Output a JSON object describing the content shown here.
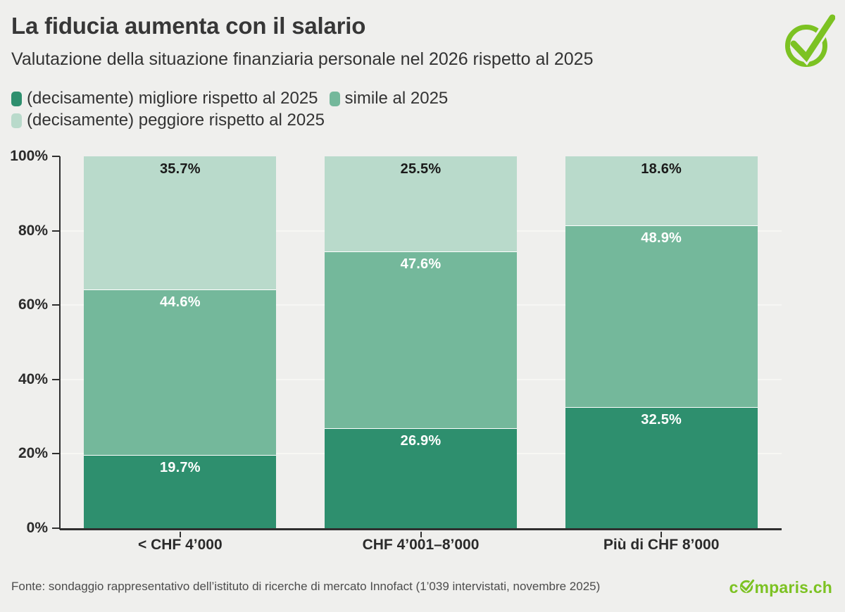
{
  "page": {
    "background": "#efefed"
  },
  "header": {
    "title": "La fiducia aumenta con il salario",
    "subtitle": "Valutazione della situazione finanziaria personale nel 2026 rispetto al 2025"
  },
  "brand": {
    "green": "#7cc222",
    "checkmark_icon": "check-circle",
    "logo_pre": "c",
    "logo_post": "mparis.ch"
  },
  "chart_data": {
    "type": "bar",
    "subtype": "stacked-100",
    "title": "La fiducia aumenta con il salario",
    "subtitle": "Valutazione della situazione finanziaria personale nel 2026 rispetto al 2025",
    "categories": [
      "< CHF 4’000",
      "CHF 4’001–8’000",
      "Più di CHF 8’000"
    ],
    "series": [
      {
        "name": "(decisamente) migliore rispetto al 2025",
        "color": "#2e8f6e",
        "label_color": "#ffffff",
        "values": [
          19.7,
          26.9,
          32.5
        ]
      },
      {
        "name": "simile al 2025",
        "color": "#74b89b",
        "label_color": "#ffffff",
        "values": [
          44.6,
          47.6,
          48.9
        ]
      },
      {
        "name": "(decisamente) peggiore rispetto al 2025",
        "color": "#b9dacb",
        "label_color": "#1a1a1a",
        "values": [
          35.7,
          25.5,
          18.6
        ]
      }
    ],
    "xlabel": "",
    "ylabel": "",
    "ylim": [
      0,
      100
    ],
    "y_ticks": [
      0,
      20,
      40,
      60,
      80,
      100
    ],
    "y_tick_suffix": "%",
    "label_suffix": "%",
    "grid": true,
    "legend_position": "top",
    "axis_color": "#2f2f2f",
    "grid_color": "#f7f7f4",
    "separator_color": "#ffffff",
    "tick_label_color": "#2b2b2b"
  },
  "footer": {
    "source": "Fonte: sondaggio rappresentativo dell’istituto di ricerche di mercato Innofact (1’039 intervistati, novembre 2025)"
  }
}
